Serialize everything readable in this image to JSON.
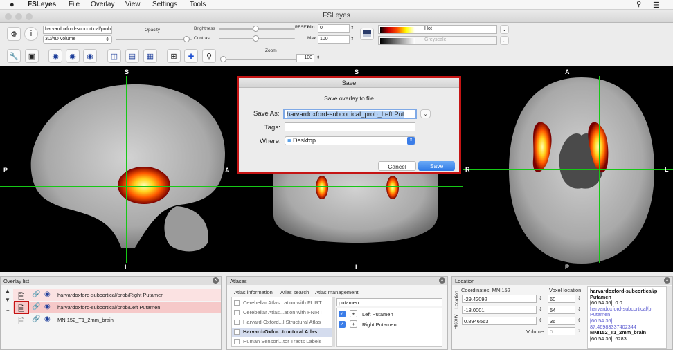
{
  "menubar": {
    "apple": "",
    "app": "FSLeyes",
    "items": [
      "File",
      "Overlay",
      "View",
      "Settings",
      "Tools"
    ]
  },
  "window": {
    "title": "FSLeyes"
  },
  "toolbar": {
    "overlay_name": "harvardoxford-subcortical/prob/Le",
    "volume_type": "3D/4D volume",
    "opacity_label": "Opacity",
    "brightness_label": "Brightness",
    "contrast_label": "Contrast",
    "reset_label": "RESET",
    "min_label": "Min.",
    "min_value": "0",
    "max_label": "Max.",
    "max_value": "100",
    "cmap1": "Hot",
    "cmap2": "Greyscale",
    "zoom_label": "Zoom",
    "zoom_value": "100"
  },
  "canvas": {
    "sagittal": {
      "top": "S",
      "bottom": "I",
      "left": "P",
      "right": "A"
    },
    "coronal": {
      "top": "S",
      "bottom": "I",
      "left": "R",
      "right": "L"
    },
    "axial": {
      "top": "A",
      "bottom": "P",
      "left": "R",
      "right": "L"
    }
  },
  "dialog": {
    "title": "Save",
    "heading": "Save overlay to file",
    "save_as_label": "Save As:",
    "save_as_value": "harvardoxford-subcortical_prob_Left Put",
    "tags_label": "Tags:",
    "tags_value": "",
    "where_label": "Where:",
    "where_value": "Desktop",
    "cancel": "Cancel",
    "save": "Save"
  },
  "overlay_list": {
    "title": "Overlay list",
    "items": [
      {
        "name": "harvardoxford-subcortical/prob/Right Putamen"
      },
      {
        "name": "harvardoxford-subcortical/prob/Left Putamen"
      },
      {
        "name": "MNI152_T1_2mm_brain"
      }
    ]
  },
  "atlases": {
    "title": "Atlases",
    "tabs": [
      "Atlas information",
      "Atlas search",
      "Atlas management"
    ],
    "atlas_list": [
      "Cerebellar Atlas...ation with FLIRT",
      "Cerebellar Atlas...ation with FNIRT",
      "Harvard-Oxford...l Structural Atlas",
      "Harvard-Oxfor...tructural Atlas",
      "Human Sensori...tor Tracts Labels"
    ],
    "search_value": "putamen",
    "results": [
      "Left Putamen",
      "Right Putamen"
    ]
  },
  "location": {
    "title": "Location",
    "tabs": [
      "Location",
      "History"
    ],
    "coordinates_label": "Coordinates: MNI152",
    "voxel_label": "Voxel location",
    "coords": [
      "-29.42092",
      "-18.0001",
      "0.8946563"
    ],
    "voxels": [
      "60",
      "54",
      "36"
    ],
    "volume_label": "Volume",
    "volume_value": "0",
    "info": [
      {
        "text": "harvardoxford-subcortical/p",
        "color": "#111111",
        "bold": true
      },
      {
        "text": "Putamen",
        "color": "#111111",
        "bold": true
      },
      {
        "text": "[60 54 36]: 0.0",
        "color": "#111111",
        "bold": false
      },
      {
        "text": "harvardoxford-subcortical/p",
        "color": "#5a5ad0",
        "bold": false
      },
      {
        "text": "Putamen",
        "color": "#5a5ad0",
        "bold": false
      },
      {
        "text": "[60 54 36]:",
        "color": "#5a5ad0",
        "bold": false
      },
      {
        "text": "87.46983337402344",
        "color": "#5a5ad0",
        "bold": false
      },
      {
        "text": "MNI152_T1_2mm_brain",
        "color": "#111111",
        "bold": true
      },
      {
        "text": "[60 54 36]: 6283",
        "color": "#111111",
        "bold": false
      }
    ]
  }
}
